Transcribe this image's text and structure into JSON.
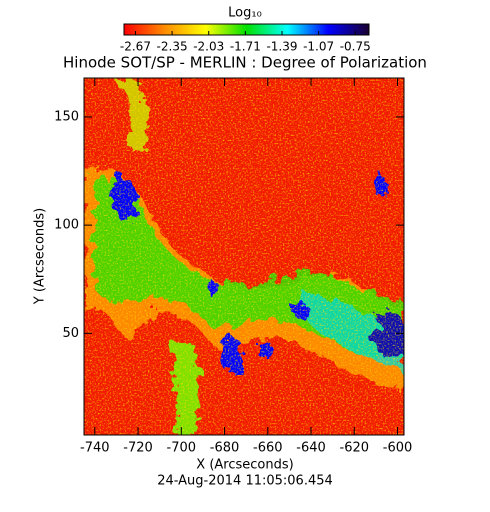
{
  "chart_data": {
    "type": "heatmap",
    "title": "Hinode SOT/SP - MERLIN : Degree of Polarization",
    "x_label": "X (Arcseconds)",
    "y_label": "Y (Arcseconds)",
    "footer": "24-Aug-2014 11:05:06.454",
    "colorbar": {
      "label": "Log₁₀",
      "lim": [
        -2.77,
        -0.63
      ],
      "ticks": [
        -2.67,
        -2.35,
        -2.03,
        -1.71,
        -1.39,
        -1.07,
        -0.75
      ],
      "colors": [
        "#ff0000",
        "#ff8c00",
        "#ffff00",
        "#00e000",
        "#00ffff",
        "#0000ff",
        "#1a0030"
      ]
    },
    "xlim": [
      -745,
      -597
    ],
    "xticks": [
      -740,
      -720,
      -700,
      -680,
      -660,
      -640,
      -620,
      -600
    ],
    "ylim": [
      3,
      168
    ],
    "yticks": [
      50,
      100,
      150
    ]
  }
}
